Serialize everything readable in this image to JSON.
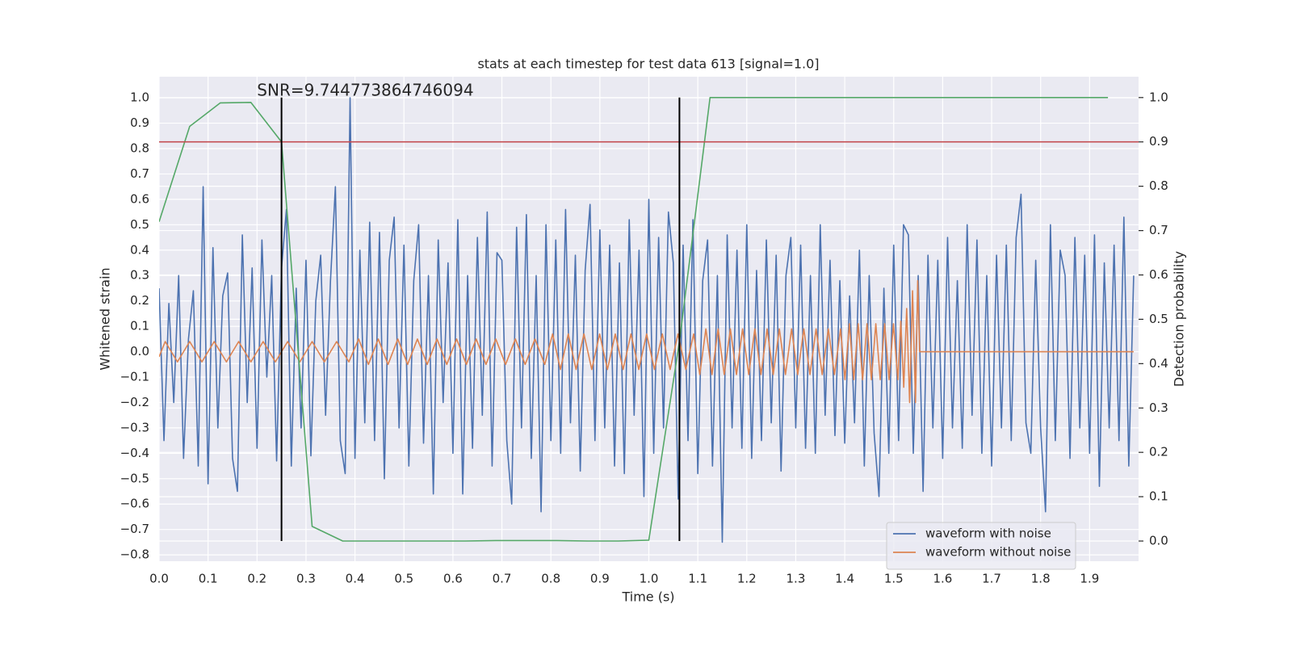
{
  "chart_data": {
    "type": "line",
    "title": "stats at each timestep for test data 613 [signal=1.0]",
    "xlabel": "Time (s)",
    "ylabel": "Whitened strain",
    "y2label": "Detection probability",
    "xlim": [
      0,
      2.0
    ],
    "ylim": [
      -0.825,
      1.083
    ],
    "y2lim": [
      -0.0455,
      1.047
    ],
    "xticks": [
      {
        "value": 0,
        "label": "0.0"
      },
      0.1,
      0.2,
      0.3,
      0.4,
      0.5,
      0.6,
      0.7,
      0.8,
      0.9,
      {
        "value": 1,
        "label": "1.0"
      },
      1.1,
      1.2,
      1.3,
      1.4,
      1.5,
      1.6,
      1.7,
      1.8,
      1.9
    ],
    "yticks": [
      {
        "value": -0.8,
        "label": "−0.8"
      },
      {
        "value": -0.7,
        "label": "−0.7"
      },
      {
        "value": -0.6,
        "label": "−0.6"
      },
      {
        "value": -0.5,
        "label": "−0.5"
      },
      {
        "value": -0.4,
        "label": "−0.4"
      },
      {
        "value": -0.3,
        "label": "−0.3"
      },
      {
        "value": -0.2,
        "label": "−0.2"
      },
      {
        "value": -0.1,
        "label": "−0.1"
      },
      {
        "value": 0,
        "label": "0.0"
      },
      0.1,
      0.2,
      0.3,
      0.4,
      0.5,
      0.6,
      0.7,
      0.8,
      0.9,
      {
        "value": 1,
        "label": "1.0"
      }
    ],
    "y2ticks": [
      {
        "value": 0,
        "label": "0.0"
      },
      0.1,
      0.2,
      0.3,
      0.4,
      0.5,
      0.6,
      0.7,
      0.8,
      0.9,
      {
        "value": 1,
        "label": "1.0"
      }
    ],
    "grid": true,
    "legend": "lower right",
    "series": [
      {
        "name": "waveform with noise",
        "color": "#4c72b0",
        "x": [
          0,
          0.01,
          0.02,
          0.03,
          0.04,
          0.05,
          0.06,
          0.07,
          0.08,
          0.09,
          0.1,
          0.11,
          0.12,
          0.13,
          0.14,
          0.15,
          0.16,
          0.17,
          0.18,
          0.19,
          0.2,
          0.21,
          0.22,
          0.23,
          0.24,
          0.25,
          0.26,
          0.27,
          0.28,
          0.29,
          0.3,
          0.31,
          0.32,
          0.33,
          0.34,
          0.35,
          0.36,
          0.37,
          0.38,
          0.39,
          0.4,
          0.41,
          0.42,
          0.43,
          0.44,
          0.45,
          0.46,
          0.47,
          0.48,
          0.49,
          0.5,
          0.51,
          0.52,
          0.53,
          0.54,
          0.55,
          0.56,
          0.57,
          0.58,
          0.59,
          0.6,
          0.61,
          0.62,
          0.63,
          0.64,
          0.65,
          0.66,
          0.67,
          0.68,
          0.69,
          0.7,
          0.71,
          0.72,
          0.73,
          0.74,
          0.75,
          0.76,
          0.77,
          0.78,
          0.79,
          0.8,
          0.81,
          0.82,
          0.83,
          0.84,
          0.85,
          0.86,
          0.87,
          0.88,
          0.89,
          0.9,
          0.91,
          0.92,
          0.93,
          0.94,
          0.95,
          0.96,
          0.97,
          0.98,
          0.99,
          1.0,
          1.01,
          1.02,
          1.03,
          1.04,
          1.05,
          1.06,
          1.07,
          1.08,
          1.09,
          1.1,
          1.11,
          1.12,
          1.13,
          1.14,
          1.15,
          1.16,
          1.17,
          1.18,
          1.19,
          1.2,
          1.21,
          1.22,
          1.23,
          1.24,
          1.25,
          1.26,
          1.27,
          1.28,
          1.29,
          1.3,
          1.31,
          1.32,
          1.33,
          1.34,
          1.35,
          1.36,
          1.37,
          1.38,
          1.39,
          1.4,
          1.41,
          1.42,
          1.43,
          1.44,
          1.45,
          1.46,
          1.47,
          1.48,
          1.49,
          1.5,
          1.51,
          1.52,
          1.53,
          1.54,
          1.55,
          1.56,
          1.57,
          1.58,
          1.59,
          1.6,
          1.61,
          1.62,
          1.63,
          1.64,
          1.65,
          1.66,
          1.67,
          1.68,
          1.69,
          1.7,
          1.71,
          1.72,
          1.73,
          1.74,
          1.75,
          1.76,
          1.77,
          1.78,
          1.79,
          1.8,
          1.81,
          1.82,
          1.83,
          1.84,
          1.85,
          1.86,
          1.87,
          1.88,
          1.89,
          1.9,
          1.91,
          1.92,
          1.93,
          1.94,
          1.95,
          1.96,
          1.97,
          1.98,
          1.99
        ],
        "values": [
          0.25,
          -0.35,
          0.19,
          -0.2,
          0.3,
          -0.42,
          0.05,
          0.24,
          -0.45,
          0.65,
          -0.52,
          0.41,
          -0.3,
          0.22,
          0.31,
          -0.42,
          -0.55,
          0.46,
          -0.2,
          0.33,
          -0.38,
          0.44,
          -0.1,
          0.3,
          -0.43,
          0.33,
          0.56,
          -0.45,
          0.25,
          -0.3,
          0.36,
          -0.41,
          0.2,
          0.38,
          -0.25,
          0.28,
          0.65,
          -0.35,
          -0.48,
          1.0,
          -0.42,
          0.4,
          -0.28,
          0.51,
          -0.35,
          0.47,
          -0.5,
          0.36,
          0.53,
          -0.3,
          0.42,
          -0.45,
          0.28,
          0.5,
          -0.36,
          0.3,
          -0.56,
          0.44,
          -0.2,
          0.35,
          -0.4,
          0.52,
          -0.56,
          0.3,
          -0.38,
          0.45,
          -0.25,
          0.55,
          -0.45,
          0.39,
          0.36,
          -0.35,
          -0.6,
          0.49,
          -0.3,
          0.54,
          -0.42,
          0.3,
          -0.63,
          0.5,
          -0.35,
          0.44,
          -0.4,
          0.56,
          -0.28,
          0.38,
          -0.47,
          0.32,
          0.58,
          -0.35,
          0.48,
          -0.3,
          0.42,
          -0.45,
          0.35,
          -0.48,
          0.52,
          -0.25,
          0.4,
          -0.57,
          0.6,
          -0.4,
          0.45,
          -0.3,
          0.55,
          0.35,
          -0.58,
          0.42,
          -0.35,
          0.52,
          -0.48,
          0.28,
          0.44,
          -0.45,
          0.3,
          -0.75,
          0.46,
          -0.3,
          0.4,
          -0.38,
          0.5,
          -0.42,
          0.32,
          -0.35,
          0.44,
          -0.28,
          0.38,
          -0.47,
          0.3,
          0.45,
          -0.3,
          0.42,
          -0.38,
          0.3,
          -0.4,
          0.5,
          -0.25,
          0.36,
          -0.33,
          0.28,
          -0.36,
          0.22,
          -0.28,
          0.4,
          -0.45,
          0.3,
          -0.32,
          -0.57,
          0.25,
          -0.4,
          0.42,
          -0.35,
          0.5,
          0.46,
          -0.4,
          0.3,
          -0.55,
          0.38,
          -0.3,
          0.36,
          -0.42,
          0.45,
          -0.3,
          0.28,
          -0.38,
          0.5,
          -0.25,
          0.44,
          -0.4,
          0.3,
          -0.45,
          0.38,
          -0.3,
          0.42,
          -0.35,
          0.45,
          0.62,
          -0.28,
          -0.4,
          0.36,
          -0.3,
          -0.63,
          0.5,
          -0.35,
          0.4,
          0.3,
          -0.42,
          0.45,
          -0.3,
          0.38,
          -0.4,
          0.46,
          -0.53,
          0.35,
          -0.3,
          0.42,
          -0.35,
          0.53,
          -0.45,
          0.3
        ]
      },
      {
        "name": "waveform without noise",
        "color": "#dd8452",
        "x": [
          0,
          0.0125,
          0.0375,
          0.0625,
          0.0875,
          0.1125,
          0.1375,
          0.1625,
          0.1875,
          0.2125,
          0.2375,
          0.2625,
          0.2875,
          0.3125,
          0.3375,
          0.3625,
          0.3875,
          0.4075,
          0.4275,
          0.4475,
          0.4675,
          0.4875,
          0.5075,
          0.5275,
          0.5475,
          0.5675,
          0.5875,
          0.6075,
          0.6275,
          0.6475,
          0.6675,
          0.6875,
          0.7075,
          0.7275,
          0.7475,
          0.7675,
          0.7875,
          0.8035,
          0.8195,
          0.8355,
          0.8515,
          0.8675,
          0.8835,
          0.8995,
          0.9155,
          0.9315,
          0.9475,
          0.9635,
          0.9795,
          0.9955,
          1.0115,
          1.0275,
          1.0435,
          1.0595,
          1.0755,
          1.0915,
          1.104,
          1.1165,
          1.129,
          1.1415,
          1.154,
          1.1665,
          1.179,
          1.1915,
          1.204,
          1.2165,
          1.229,
          1.2415,
          1.254,
          1.2665,
          1.279,
          1.2915,
          1.304,
          1.3165,
          1.329,
          1.3415,
          1.354,
          1.3665,
          1.379,
          1.3915,
          1.4005,
          1.4095,
          1.4185,
          1.4275,
          1.4365,
          1.4455,
          1.4545,
          1.4635,
          1.4725,
          1.4815,
          1.4905,
          1.4995,
          1.5085,
          1.5145,
          1.5205,
          1.5265,
          1.5325,
          1.5385,
          1.5445,
          1.549,
          1.553,
          1.99
        ],
        "values": [
          -0.02,
          0.04,
          -0.04,
          0.04,
          -0.04,
          0.04,
          -0.04,
          0.04,
          -0.04,
          0.04,
          -0.04,
          0.04,
          -0.04,
          0.04,
          -0.04,
          0.04,
          -0.04,
          0.05,
          -0.05,
          0.05,
          -0.05,
          0.05,
          -0.05,
          0.05,
          -0.05,
          0.05,
          -0.05,
          0.05,
          -0.05,
          0.05,
          -0.05,
          0.05,
          -0.05,
          0.05,
          -0.05,
          0.05,
          -0.05,
          0.07,
          -0.07,
          0.07,
          -0.07,
          0.07,
          -0.07,
          0.07,
          -0.07,
          0.07,
          -0.07,
          0.07,
          -0.07,
          0.07,
          -0.07,
          0.07,
          -0.07,
          0.07,
          -0.07,
          0.07,
          -0.09,
          0.09,
          -0.09,
          0.09,
          -0.09,
          0.09,
          -0.09,
          0.09,
          -0.09,
          0.09,
          -0.09,
          0.09,
          -0.09,
          0.09,
          -0.09,
          0.09,
          -0.09,
          0.09,
          -0.09,
          0.09,
          -0.09,
          0.09,
          -0.09,
          0.09,
          -0.11,
          0.11,
          -0.11,
          0.11,
          -0.11,
          0.11,
          -0.11,
          0.11,
          -0.11,
          0.11,
          -0.11,
          0.11,
          -0.11,
          0.12,
          -0.14,
          0.17,
          -0.2,
          0.24,
          -0.2,
          0.28,
          0,
          0
        ]
      },
      {
        "color": "#55a868",
        "axis": "y2",
        "x": [
          0,
          0.0625,
          0.125,
          0.1875,
          0.25,
          0.3125,
          0.375,
          0.4375,
          0.5,
          0.5625,
          0.625,
          0.6875,
          0.75,
          0.8125,
          0.875,
          0.9375,
          1.0,
          1.0625,
          1.125,
          1.1875,
          1.25,
          1.3125,
          1.375,
          1.4375,
          1.5,
          1.5625,
          1.625,
          1.6875,
          1.75,
          1.8125,
          1.875,
          1.9375
        ],
        "values": [
          0.72,
          0.935,
          0.988,
          0.989,
          0.9,
          0.033,
          0,
          0,
          0,
          0,
          0,
          0.001,
          0.001,
          0.001,
          0,
          0,
          0.002,
          0.45,
          1,
          1,
          1,
          1,
          1,
          1,
          1,
          1,
          1,
          1,
          1,
          1,
          1,
          1
        ]
      }
    ],
    "hlines": [
      {
        "y": 0.9,
        "axis": "y2",
        "color": "#c44e52"
      }
    ],
    "vlines": [
      {
        "x": 0.25,
        "ymin": 0,
        "ymax": 1,
        "axis": "y2",
        "color": "#000000"
      },
      {
        "x": 1.0625,
        "ymin": 0,
        "ymax": 1,
        "axis": "y2",
        "color": "#000000"
      }
    ],
    "annotation": {
      "text": "SNR=9.744773864746094",
      "x": 0.2,
      "y": 1.0
    }
  }
}
